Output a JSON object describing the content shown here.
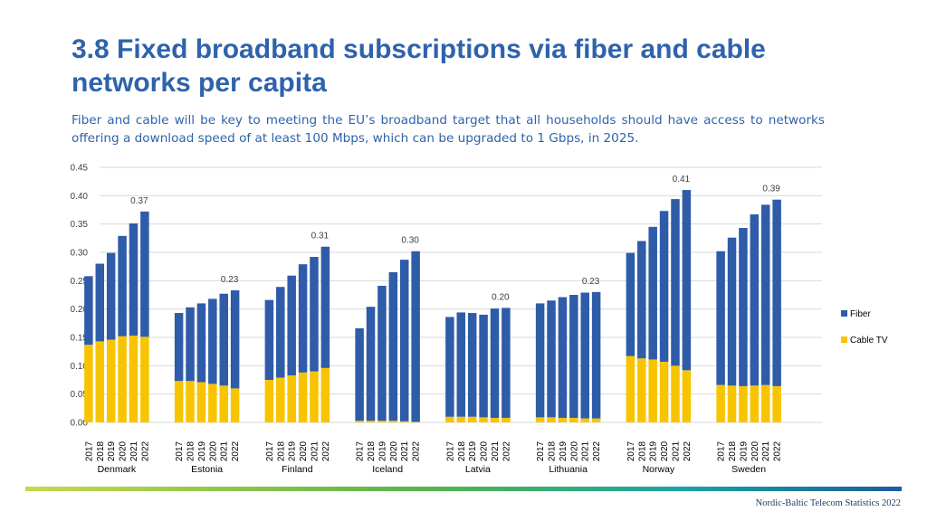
{
  "header": {
    "title": "3.8 Fixed broadband subscriptions via fiber and cable networks per capita",
    "subtitle": "Fiber and cable will be key to meeting the EU’s broadband target that all households should have access to networks offering a download speed of at least 100 Mbps, which can be upgraded to 1 Gbps, in 2025."
  },
  "footer": {
    "source": "Nordic-Baltic Telecom Statistics 2022"
  },
  "colors": {
    "fiber": "#2e5ca8",
    "cable": "#f8c400",
    "grid": "#d9d9d9",
    "text": "#404040"
  },
  "chart_data": {
    "type": "bar",
    "stacked": true,
    "years": [
      "2017",
      "2018",
      "2019",
      "2020",
      "2021",
      "2022"
    ],
    "ylim": [
      0,
      0.45
    ],
    "yticks": [
      "0.00",
      "0.05",
      "0.10",
      "0.15",
      "0.20",
      "0.25",
      "0.30",
      "0.35",
      "0.40",
      "0.45"
    ],
    "grid": true,
    "legend_position": "right",
    "series_names": [
      "Fiber",
      "Cable TV"
    ],
    "groups": [
      {
        "country": "Denmark",
        "total_label": "0.37",
        "cable": [
          0.137,
          0.143,
          0.146,
          0.152,
          0.153,
          0.151
        ],
        "fiber": [
          0.121,
          0.137,
          0.153,
          0.177,
          0.198,
          0.221
        ]
      },
      {
        "country": "Estonia",
        "total_label": "0.23",
        "cable": [
          0.073,
          0.073,
          0.071,
          0.068,
          0.065,
          0.06
        ],
        "fiber": [
          0.12,
          0.13,
          0.139,
          0.15,
          0.162,
          0.173
        ]
      },
      {
        "country": "Finland",
        "total_label": "0.31",
        "cable": [
          0.075,
          0.079,
          0.083,
          0.088,
          0.09,
          0.096
        ],
        "fiber": [
          0.141,
          0.16,
          0.176,
          0.191,
          0.202,
          0.214
        ]
      },
      {
        "country": "Iceland",
        "total_label": "0.30",
        "cable": [
          0.003,
          0.003,
          0.003,
          0.003,
          0.002,
          0.001
        ],
        "fiber": [
          0.163,
          0.201,
          0.238,
          0.262,
          0.285,
          0.301
        ]
      },
      {
        "country": "Latvia",
        "total_label": "0.20",
        "cable": [
          0.01,
          0.01,
          0.01,
          0.009,
          0.008,
          0.008
        ],
        "fiber": [
          0.176,
          0.184,
          0.183,
          0.181,
          0.193,
          0.194
        ]
      },
      {
        "country": "Lithuania",
        "total_label": "0.23",
        "cable": [
          0.009,
          0.009,
          0.008,
          0.008,
          0.007,
          0.007
        ],
        "fiber": [
          0.201,
          0.206,
          0.213,
          0.217,
          0.222,
          0.223
        ]
      },
      {
        "country": "Norway",
        "total_label": "0.41",
        "cable": [
          0.117,
          0.113,
          0.111,
          0.107,
          0.1,
          0.092
        ],
        "fiber": [
          0.182,
          0.207,
          0.234,
          0.266,
          0.294,
          0.318
        ]
      },
      {
        "country": "Sweden",
        "total_label": "0.39",
        "cable": [
          0.066,
          0.065,
          0.064,
          0.065,
          0.066,
          0.064
        ],
        "fiber": [
          0.236,
          0.261,
          0.279,
          0.302,
          0.318,
          0.329
        ]
      }
    ]
  }
}
